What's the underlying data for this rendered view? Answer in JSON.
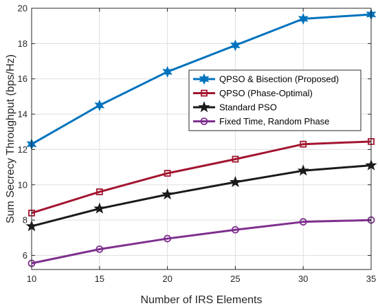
{
  "chart_data": {
    "type": "line",
    "title": "",
    "xlabel": "Number of IRS Elements",
    "ylabel": "Sum Secrecy Throughput (bps/Hz)",
    "x": [
      10,
      15,
      20,
      25,
      30,
      35
    ],
    "xticks": [
      10,
      15,
      20,
      25,
      30,
      35
    ],
    "yticks": [
      6,
      8,
      10,
      12,
      14,
      16,
      18,
      20
    ],
    "xlim": [
      10,
      35
    ],
    "ylim": [
      5.2,
      20
    ],
    "grid": true,
    "legend_position": "right",
    "series": [
      {
        "name": "QPSO & Bisection (Proposed)",
        "color": "#0072BD",
        "marker": "hexagram",
        "values": [
          12.3,
          14.5,
          16.4,
          17.9,
          19.4,
          19.65
        ]
      },
      {
        "name": "QPSO (Phase-Optimal)",
        "color": "#A2142F",
        "marker": "square",
        "values": [
          8.4,
          9.6,
          10.65,
          11.45,
          12.3,
          12.45
        ]
      },
      {
        "name": "Standard PSO",
        "color": "#1a1a1a",
        "marker": "pentagram",
        "values": [
          7.65,
          8.65,
          9.45,
          10.15,
          10.8,
          11.1
        ]
      },
      {
        "name": "Fixed Time, Random Phase",
        "color": "#7E2F8E",
        "marker": "circle",
        "values": [
          5.55,
          6.35,
          6.95,
          7.45,
          7.9,
          8.0
        ]
      }
    ]
  }
}
